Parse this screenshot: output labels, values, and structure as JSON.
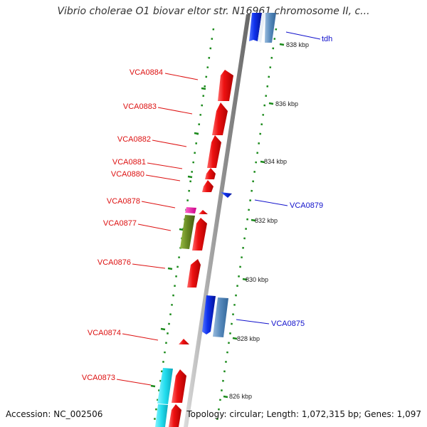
{
  "title": "Vibrio cholerae O1 biovar eltor str. N16961 chromosome II, c...",
  "footer": {
    "accession": "Accession: NC_002506",
    "summary": "Topology: circular; Length: 1,072,315 bp; Genes: 1,097"
  },
  "scale_ticks": [
    "838 kbp",
    "836 kbp",
    "834 kbp",
    "832 kbp",
    "830 kbp",
    "828 kbp",
    "826 kbp"
  ],
  "left_labels": [
    "VCA0884",
    "VCA0883",
    "VCA0882",
    "VCA0881",
    "VCA0880",
    "VCA0878",
    "VCA0877",
    "VCA0876",
    "VCA0874",
    "VCA0873"
  ],
  "right_labels": [
    "tdh",
    "VCA0879",
    "VCA0875"
  ],
  "colors": {
    "red_gene": "#ee1111",
    "blue_gene": "#1133ee",
    "steel_gene": "#5588bb",
    "cyan_gene": "#22ddee",
    "olive_gene": "#668822",
    "magenta_gene": "#ee22aa",
    "left_label": "#dd1111",
    "right_label": "#1111cc",
    "tick": "#1a8a1a",
    "backbone": "#999999"
  }
}
